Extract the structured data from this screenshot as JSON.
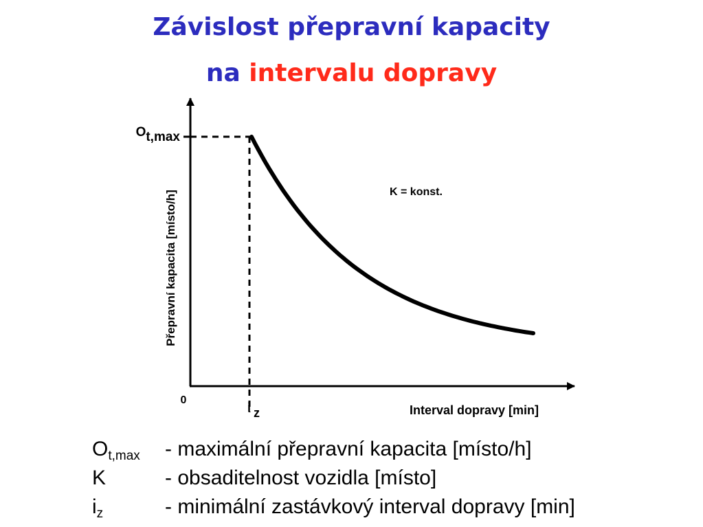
{
  "title": {
    "line1": "Závislost přepravní kapacity",
    "line2_prefix": "na",
    "line2_highlight": "intervalu dopravy"
  },
  "chart_data": {
    "type": "line",
    "xlabel": "Interval dopravy [min]",
    "ylabel": "Přepravní kapacita [místo/h]",
    "origin_label": "0",
    "x_marker": {
      "main": "i",
      "sub": "z"
    },
    "y_marker": {
      "main": "O",
      "sub": "t,max"
    },
    "annotation": "K = konst.",
    "curve": "hyperbola",
    "axis_values_printed": false,
    "grid": false,
    "legend": "none",
    "colors": {
      "curve": "#000000",
      "axes": "#000000",
      "guides": "#000000"
    }
  },
  "legend": [
    {
      "symbol": "O",
      "sub": "t,max",
      "description": "- maximální přepravní kapacita [místo/h]"
    },
    {
      "symbol": "K",
      "sub": "",
      "description": "- obsaditelnost vozidla [místo]"
    },
    {
      "symbol": "i",
      "sub": "z",
      "description": "- minimální zastávkový interval dopravy [min]"
    }
  ],
  "colors": {
    "title_blue": "#2c2cbe",
    "title_red": "#ff2a1a",
    "text": "#000000"
  }
}
